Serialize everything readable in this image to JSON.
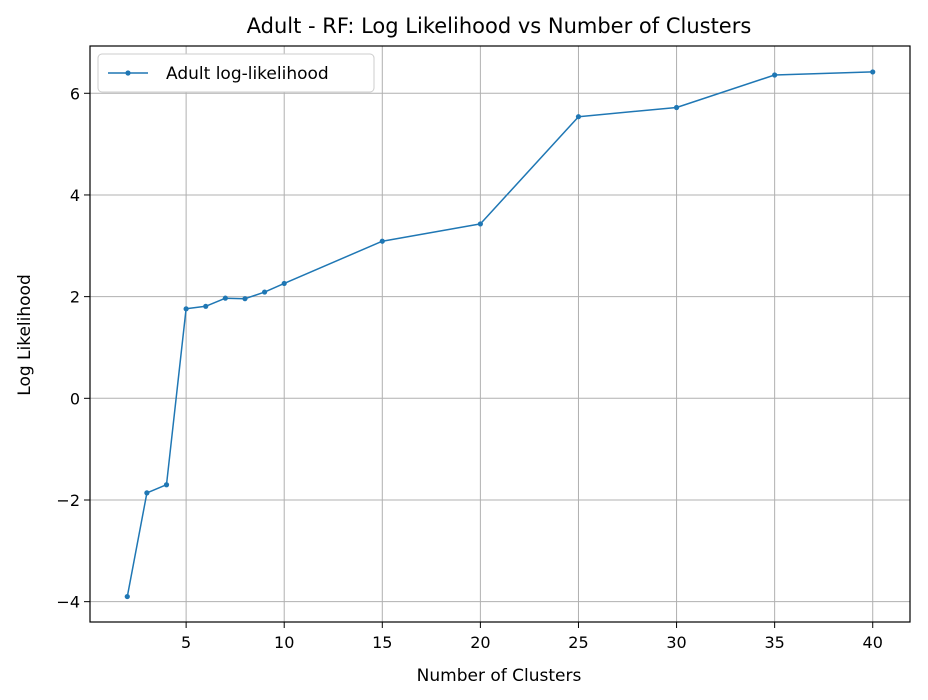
{
  "chart_data": {
    "type": "line",
    "title": "Adult - RF: Log Likelihood vs Number of Clusters",
    "xlabel": "Number of Clusters",
    "ylabel": "Log Likelihood",
    "xlim": [
      0.1,
      41.9
    ],
    "ylim": [
      -4.4,
      6.93
    ],
    "xticks": [
      5,
      10,
      15,
      20,
      25,
      30,
      35,
      40
    ],
    "yticks": [
      -4,
      -2,
      0,
      2,
      4,
      6
    ],
    "xtick_labels": [
      "5",
      "10",
      "15",
      "20",
      "25",
      "30",
      "35",
      "40"
    ],
    "ytick_labels": [
      "−4",
      "−2",
      "0",
      "2",
      "4",
      "6"
    ],
    "grid": true,
    "legend_position": "top-left",
    "series": [
      {
        "name": "Adult log-likelihood",
        "color": "#1f77b4",
        "x": [
          2,
          3,
          4,
          5,
          6,
          7,
          8,
          9,
          10,
          15,
          20,
          25,
          30,
          35,
          40
        ],
        "y": [
          -3.9,
          -1.86,
          -1.7,
          1.76,
          1.81,
          1.97,
          1.96,
          2.09,
          2.26,
          3.09,
          3.43,
          5.54,
          5.72,
          6.36,
          6.42
        ]
      }
    ]
  }
}
